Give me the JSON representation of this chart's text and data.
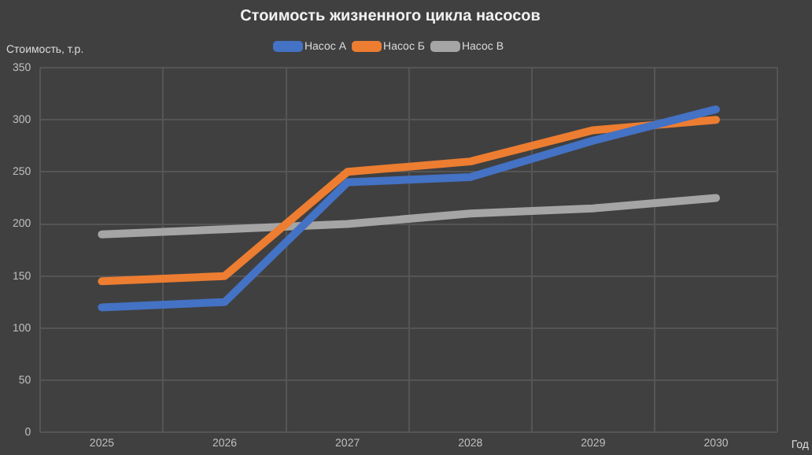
{
  "chart_data": {
    "type": "line",
    "title": "Стоимость жизненного цикла насосов",
    "xlabel": "Год",
    "ylabel": "Стоимость, т.р.",
    "categories": [
      "2025",
      "2026",
      "2027",
      "2028",
      "2029",
      "2030"
    ],
    "series": [
      {
        "name": "Насос А",
        "color": "#4472c4",
        "values": [
          120,
          125,
          240,
          245,
          280,
          310
        ]
      },
      {
        "name": "Насос Б",
        "color": "#ed7d31",
        "values": [
          145,
          150,
          250,
          260,
          290,
          300
        ]
      },
      {
        "name": "Насос В",
        "color": "#a5a5a5",
        "values": [
          190,
          195,
          200,
          210,
          215,
          225
        ]
      }
    ],
    "ylim": [
      0,
      350
    ],
    "yticks": [
      0,
      50,
      100,
      150,
      200,
      250,
      300,
      350
    ],
    "grid": true,
    "legend": "top",
    "marker": "none",
    "line_style": "solid"
  }
}
